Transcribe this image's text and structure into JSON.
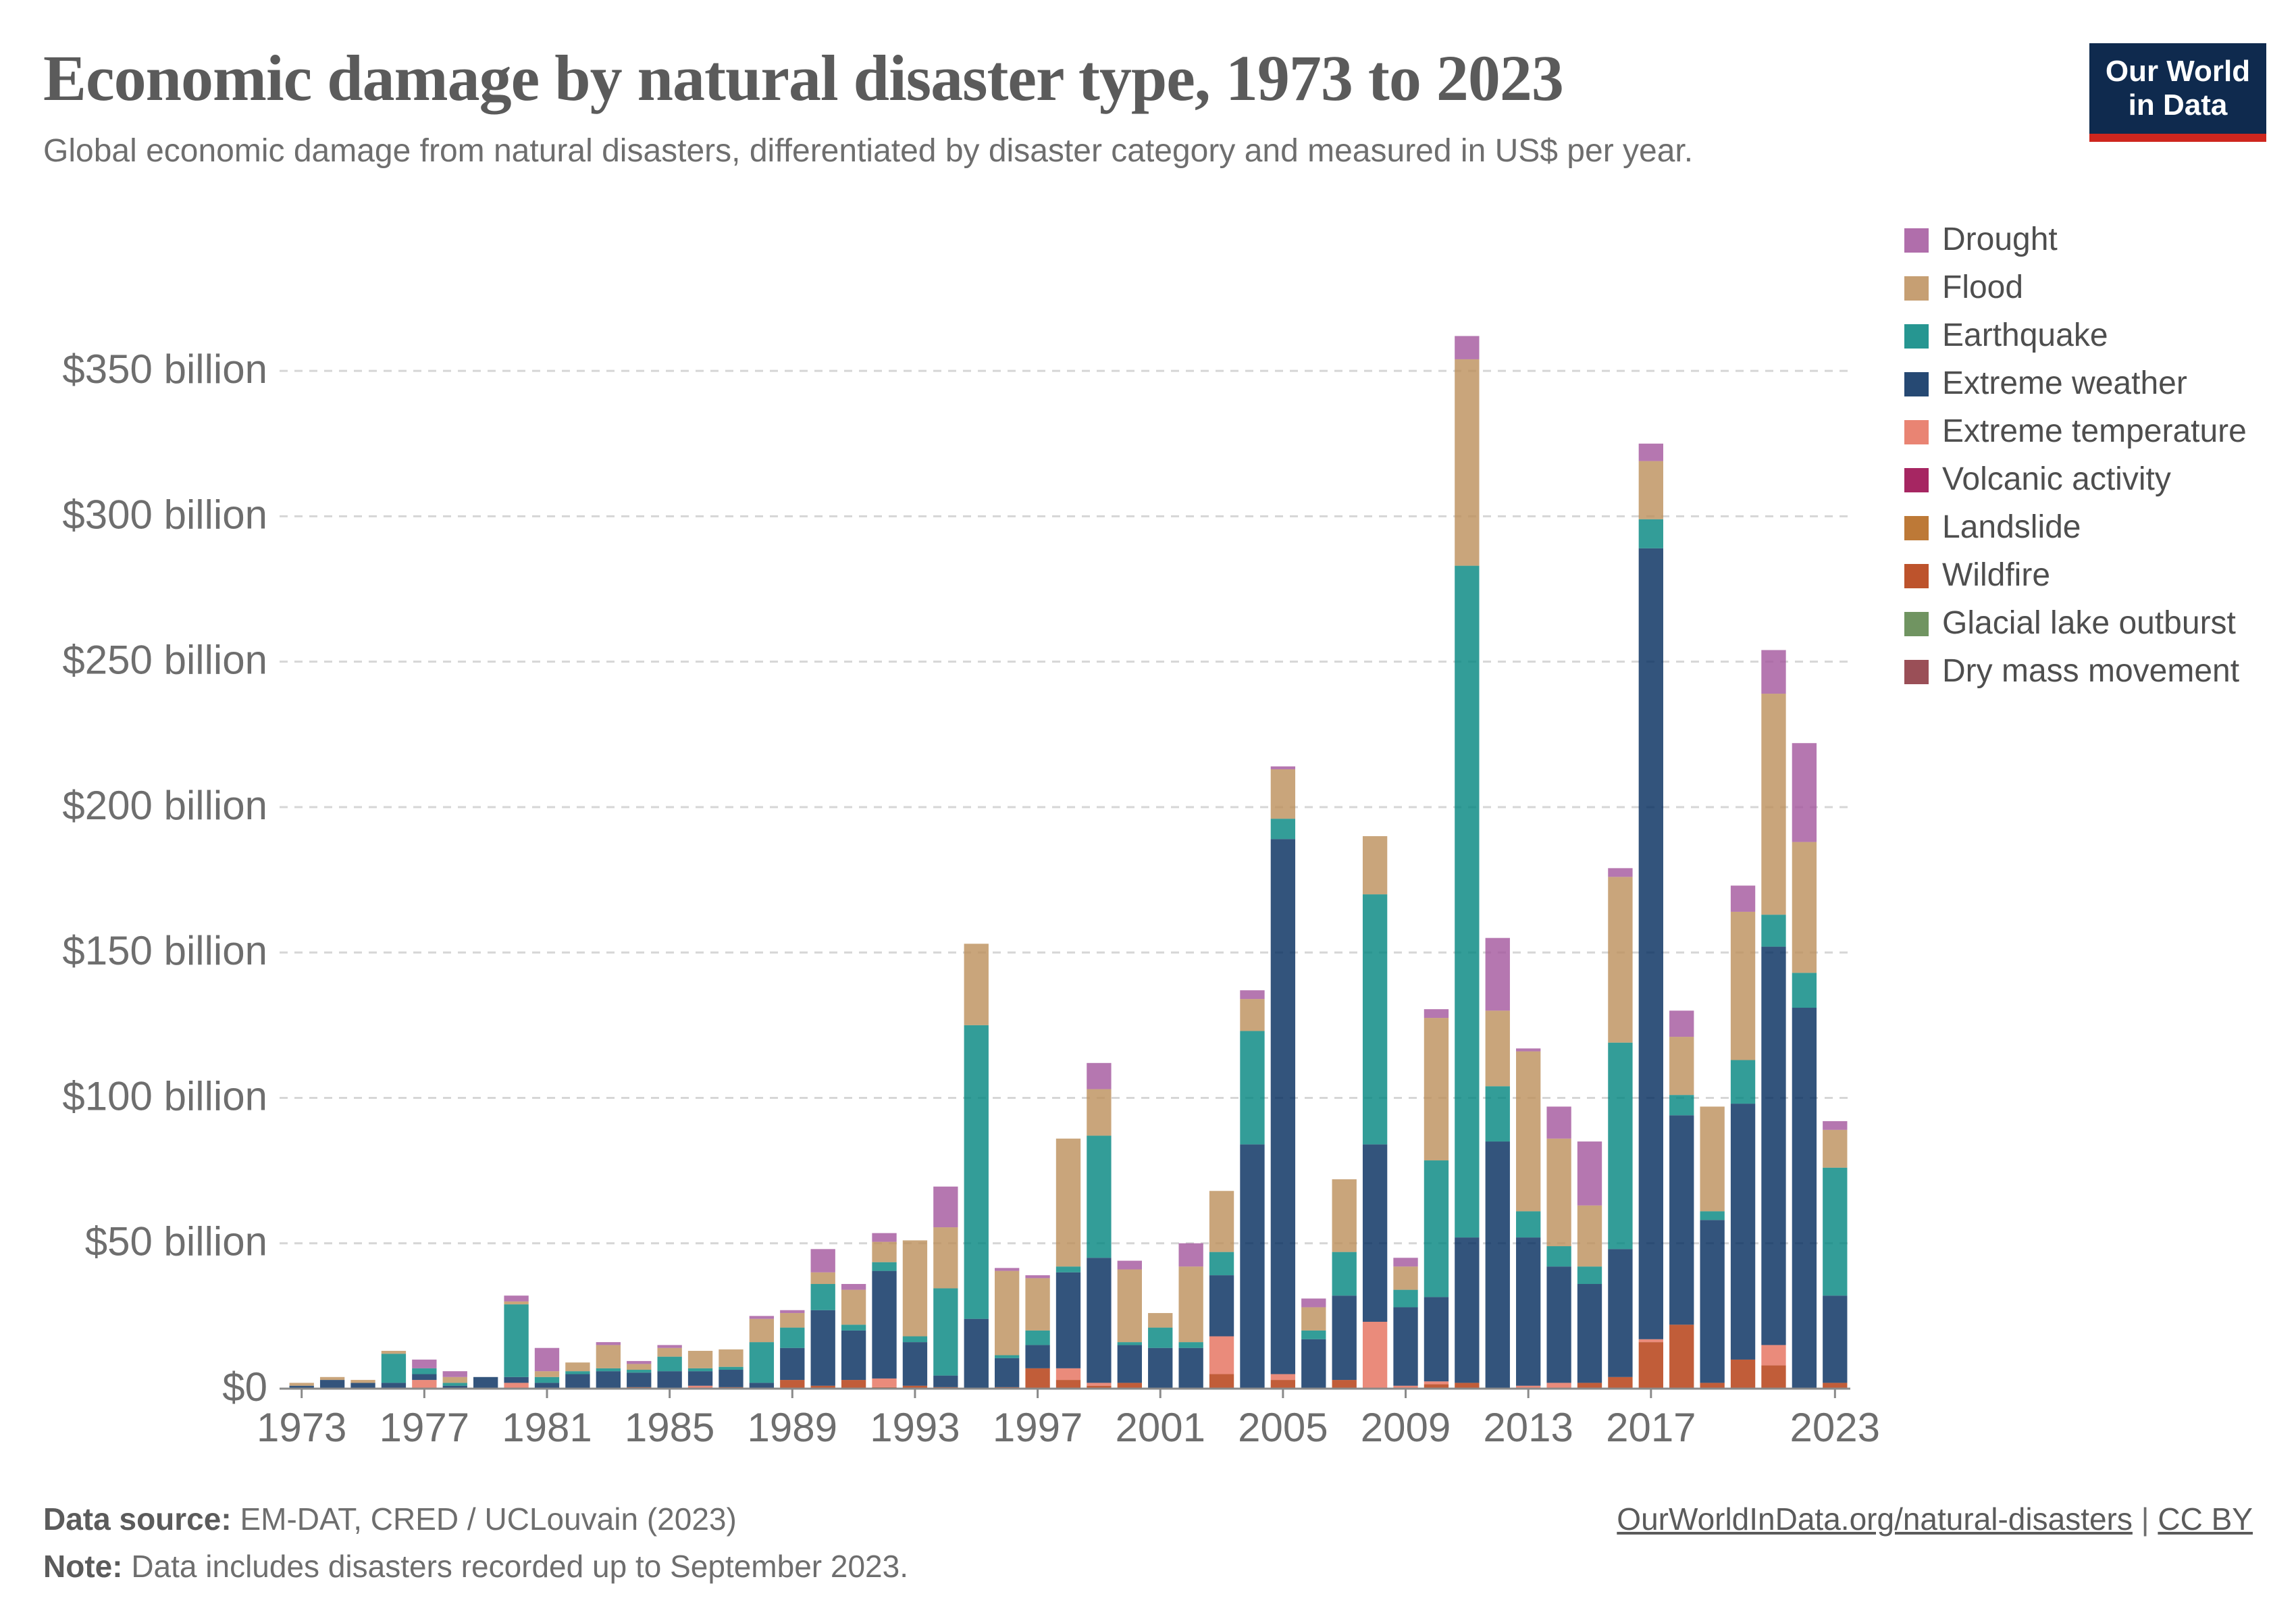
{
  "header": {
    "title": "Economic damage by natural disaster type, 1973 to 2023",
    "subtitle": "Global economic damage from natural disasters, differentiated by disaster category and measured in US$ per year."
  },
  "logo": {
    "line1": "Our World",
    "line2": "in Data"
  },
  "footer": {
    "source_label": "Data source:",
    "source_text": "EM-DAT, CRED / UCLouvain (2023)",
    "note_label": "Note:",
    "note_text": "Data includes disasters recorded up to September 2023.",
    "link_text": "OurWorldInData.org/natural-disasters",
    "separator": "|",
    "license": "CC BY"
  },
  "chart_data": {
    "type": "bar",
    "stacked": true,
    "units": "billion US$",
    "ylim": [
      0,
      350
    ],
    "yticks": [
      0,
      50,
      100,
      150,
      200,
      250,
      300,
      350
    ],
    "ytick_labels": [
      "$0",
      "$50 billion",
      "$100 billion",
      "$150 billion",
      "$200 billion",
      "$250 billion",
      "$300 billion",
      "$350 billion"
    ],
    "xtick_labels": [
      "1973",
      "1977",
      "1981",
      "1985",
      "1989",
      "1993",
      "1997",
      "2001",
      "2005",
      "2009",
      "2013",
      "2017",
      "2023"
    ],
    "grid": true,
    "legend_position": "right",
    "categories": [
      1973,
      1974,
      1975,
      1976,
      1977,
      1978,
      1979,
      1980,
      1981,
      1982,
      1983,
      1984,
      1985,
      1986,
      1987,
      1988,
      1989,
      1990,
      1991,
      1992,
      1993,
      1994,
      1995,
      1996,
      1997,
      1998,
      1999,
      2000,
      2001,
      2002,
      2003,
      2004,
      2005,
      2006,
      2007,
      2008,
      2009,
      2010,
      2011,
      2012,
      2013,
      2014,
      2015,
      2016,
      2017,
      2018,
      2019,
      2020,
      2021,
      2022,
      2023
    ],
    "series": [
      {
        "name": "Dry mass movement",
        "color": "#883039",
        "values": [
          0,
          0,
          0,
          0,
          0,
          0,
          0,
          0,
          0,
          0,
          0,
          0,
          0,
          0,
          0,
          0,
          0,
          0,
          0,
          0,
          0,
          0,
          0,
          0,
          0,
          0,
          0,
          0,
          0,
          0,
          0,
          0,
          0,
          0,
          0,
          0,
          0,
          0,
          0,
          0,
          0,
          0,
          0,
          0,
          0,
          0,
          0,
          0,
          0,
          0,
          0
        ]
      },
      {
        "name": "Glacial lake outburst",
        "color": "#578145",
        "values": [
          0,
          0,
          0,
          0,
          0,
          0,
          0,
          0,
          0,
          0,
          0,
          0,
          0,
          0,
          0,
          0,
          0,
          0,
          0,
          0,
          0,
          0,
          0,
          0,
          0,
          0,
          0,
          0,
          0,
          0,
          0,
          0,
          0,
          0,
          0,
          0,
          0,
          0,
          0,
          0,
          0,
          0,
          0,
          0,
          0,
          0,
          0,
          0,
          0,
          0,
          0
        ]
      },
      {
        "name": "Wildfire",
        "color": "#b13507",
        "values": [
          0,
          0,
          0,
          0,
          0,
          0,
          0,
          0,
          0,
          0,
          0,
          0.5,
          0,
          0,
          0.5,
          0,
          3,
          1,
          3,
          0.5,
          1,
          0.5,
          0,
          0.5,
          7,
          3,
          1,
          2,
          0,
          0,
          5,
          0,
          3,
          0,
          3,
          0,
          0,
          1.5,
          2,
          0,
          0,
          0,
          2,
          4,
          16,
          22,
          2,
          10,
          8,
          0,
          2
        ]
      },
      {
        "name": "Landslide",
        "color": "#bc8e5a",
        "values": [
          0,
          0,
          0,
          0,
          0,
          0,
          0,
          0,
          0,
          0,
          0,
          0,
          0,
          0,
          0,
          0,
          0,
          0,
          0,
          0,
          0,
          0,
          0,
          0,
          0,
          0,
          0,
          0,
          0,
          0,
          0,
          0,
          0,
          0,
          0,
          0,
          0,
          0,
          0,
          0,
          0,
          0,
          0,
          0,
          0,
          0,
          0,
          0,
          0,
          0,
          0
        ]
      },
      {
        "name": "Volcanic activity",
        "color": "#970046",
        "values": [
          0,
          0,
          0,
          0,
          0,
          0,
          0,
          0,
          0,
          0,
          0,
          0,
          0,
          0,
          0,
          0,
          0,
          0,
          0,
          0,
          0,
          0,
          0,
          0,
          0,
          0,
          0,
          0,
          0,
          0,
          0,
          0,
          0,
          0,
          0,
          0,
          0,
          0,
          0,
          0,
          0,
          0,
          0,
          0,
          0,
          0,
          0,
          0,
          0,
          0,
          0
        ]
      },
      {
        "name": "Extreme temperature",
        "color": "#e56e5a",
        "values": [
          0,
          0,
          0,
          0,
          3,
          0,
          0,
          2,
          0,
          0,
          0,
          0,
          0,
          1,
          0,
          0,
          0,
          0,
          0,
          3,
          0,
          0,
          0,
          0,
          0,
          4,
          1,
          0,
          0,
          0,
          13,
          0,
          2,
          0,
          0,
          23,
          1,
          1,
          0,
          0,
          1,
          2,
          0,
          0,
          1,
          0,
          0,
          0,
          7,
          0,
          0
        ]
      },
      {
        "name": "Extreme weather",
        "color": "#00295b",
        "values": [
          1,
          3,
          2,
          2,
          2,
          1,
          4,
          2,
          2,
          5,
          6,
          5,
          6,
          5,
          6,
          2,
          11,
          26,
          17,
          37,
          15,
          4,
          24,
          10,
          8,
          33,
          43,
          13,
          14,
          14,
          21,
          84,
          184,
          17,
          29,
          61,
          27,
          29,
          50,
          85,
          51,
          40,
          34,
          44,
          272,
          72,
          56,
          88,
          137,
          131,
          30
        ]
      },
      {
        "name": "Earthquake",
        "color": "#00847e",
        "values": [
          0,
          0,
          0,
          10,
          2,
          1,
          0,
          25,
          2,
          1,
          1,
          1,
          5,
          1,
          1,
          14,
          7,
          9,
          2,
          3,
          2,
          30,
          101,
          1,
          5,
          2,
          42,
          1,
          7,
          2,
          8,
          39,
          7,
          3,
          15,
          86,
          6,
          47,
          231,
          19,
          9,
          7,
          6,
          71,
          10,
          7,
          3,
          15,
          11,
          12,
          44
        ]
      },
      {
        "name": "Flood",
        "color": "#bc8e5a",
        "values": [
          1,
          1,
          1,
          1,
          0,
          2,
          0,
          1,
          2,
          3,
          8,
          2,
          3,
          6,
          6,
          8,
          5,
          4,
          12,
          7,
          33,
          21,
          28,
          29,
          18,
          44,
          16,
          25,
          5,
          26,
          21,
          11,
          17,
          8,
          25,
          20,
          8,
          49,
          71,
          26,
          55,
          37,
          21,
          57,
          20,
          20,
          36,
          51,
          76,
          45,
          13
        ]
      },
      {
        "name": "Drought",
        "color": "#a2559c",
        "values": [
          0,
          0,
          0,
          0,
          3,
          2,
          0,
          2,
          8,
          0,
          1,
          1,
          1,
          0,
          0,
          1,
          1,
          8,
          2,
          3,
          0,
          14,
          0,
          1,
          1,
          0,
          9,
          3,
          0,
          8,
          0,
          3,
          1,
          3,
          0,
          0,
          3,
          3,
          8,
          25,
          1,
          11,
          22,
          3,
          6,
          9,
          0,
          9,
          15,
          34,
          3
        ]
      }
    ],
    "legend_order": [
      "Drought",
      "Flood",
      "Earthquake",
      "Extreme weather",
      "Extreme temperature",
      "Volcanic activity",
      "Landslide",
      "Wildfire",
      "Glacial lake outburst",
      "Dry mass movement"
    ]
  }
}
